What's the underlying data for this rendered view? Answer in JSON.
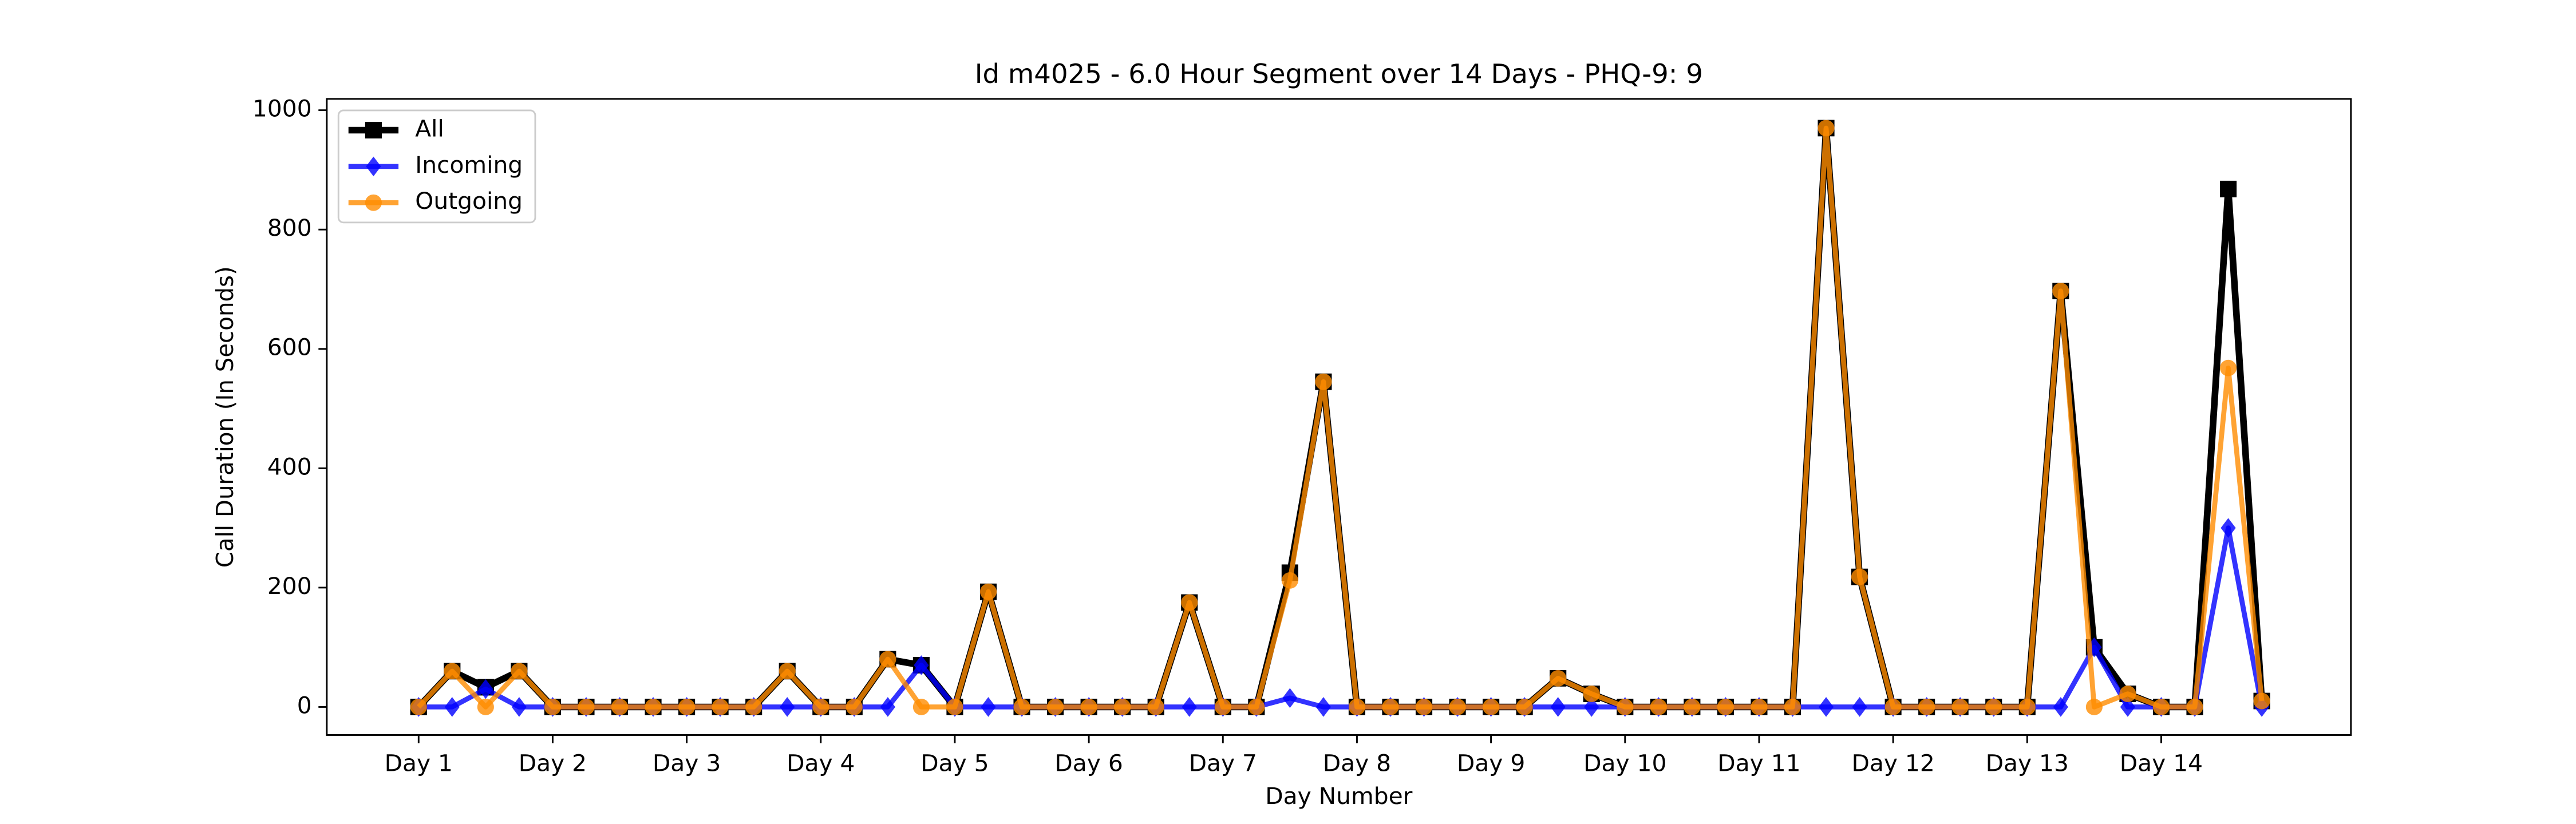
{
  "chart_data": {
    "type": "line",
    "title": "Id m4025 - 6.0 Hour Segment over 14 Days - PHQ-9: 9",
    "x_label": "Day Number",
    "y_label": "Call Duration (In Seconds)",
    "x": [
      1,
      1.25,
      1.5,
      1.75,
      2,
      2.25,
      2.5,
      2.75,
      3,
      3.25,
      3.5,
      3.75,
      4,
      4.25,
      4.5,
      4.75,
      5,
      5.25,
      5.5,
      5.75,
      6,
      6.25,
      6.5,
      6.75,
      7,
      7.25,
      7.5,
      7.75,
      8,
      8.25,
      8.5,
      8.75,
      9,
      9.25,
      9.5,
      9.75,
      10,
      10.25,
      10.5,
      10.75,
      11,
      11.25,
      11.5,
      11.75,
      12,
      12.25,
      12.5,
      12.75,
      13,
      13.25,
      13.5,
      13.75,
      14,
      14.25,
      14.5,
      14.75
    ],
    "series": [
      {
        "name": "All",
        "color": "#000000",
        "marker": "square",
        "values": [
          0,
          60,
          33,
          60,
          0,
          0,
          0,
          0,
          0,
          0,
          0,
          60,
          0,
          0,
          80,
          70,
          0,
          193,
          0,
          0,
          0,
          0,
          0,
          175,
          0,
          0,
          225,
          545,
          0,
          0,
          0,
          0,
          0,
          0,
          48,
          22,
          0,
          0,
          0,
          0,
          0,
          0,
          970,
          218,
          0,
          0,
          0,
          0,
          0,
          697,
          100,
          22,
          0,
          0,
          868,
          10
        ]
      },
      {
        "name": "Incoming",
        "color": "#0000ff",
        "marker": "diamond",
        "values": [
          0,
          0,
          30,
          0,
          0,
          0,
          0,
          0,
          0,
          0,
          0,
          0,
          0,
          0,
          0,
          70,
          0,
          0,
          0,
          0,
          0,
          0,
          0,
          0,
          0,
          0,
          15,
          0,
          0,
          0,
          0,
          0,
          0,
          0,
          0,
          0,
          0,
          0,
          0,
          0,
          0,
          0,
          0,
          0,
          0,
          0,
          0,
          0,
          0,
          0,
          100,
          0,
          0,
          0,
          300,
          0
        ]
      },
      {
        "name": "Outgoing",
        "color": "#ff8c00",
        "marker": "circle",
        "values": [
          0,
          60,
          0,
          60,
          0,
          0,
          0,
          0,
          0,
          0,
          0,
          60,
          0,
          0,
          80,
          0,
          0,
          193,
          0,
          0,
          0,
          0,
          0,
          175,
          0,
          0,
          212,
          545,
          0,
          0,
          0,
          0,
          0,
          0,
          48,
          22,
          0,
          0,
          0,
          0,
          0,
          0,
          970,
          218,
          0,
          0,
          0,
          0,
          0,
          697,
          0,
          22,
          0,
          0,
          568,
          10
        ]
      }
    ],
    "xlim": [
      0.315,
      15.415
    ],
    "xticks": [
      {
        "value": 1,
        "label": "Day 1"
      },
      {
        "value": 2,
        "label": "Day 2"
      },
      {
        "value": 3,
        "label": "Day 3"
      },
      {
        "value": 4,
        "label": "Day 4"
      },
      {
        "value": 5,
        "label": "Day 5"
      },
      {
        "value": 6,
        "label": "Day 6"
      },
      {
        "value": 7,
        "label": "Day 7"
      },
      {
        "value": 8,
        "label": "Day 8"
      },
      {
        "value": 9,
        "label": "Day 9"
      },
      {
        "value": 10,
        "label": "Day 10"
      },
      {
        "value": 11,
        "label": "Day 11"
      },
      {
        "value": 12,
        "label": "Day 12"
      },
      {
        "value": 13,
        "label": "Day 13"
      },
      {
        "value": 14,
        "label": "Day 14"
      }
    ],
    "ylim": [
      -47,
      1019
    ],
    "yticks": [
      0,
      200,
      400,
      600,
      800,
      1000
    ],
    "legend": "upper left",
    "grid": false
  }
}
